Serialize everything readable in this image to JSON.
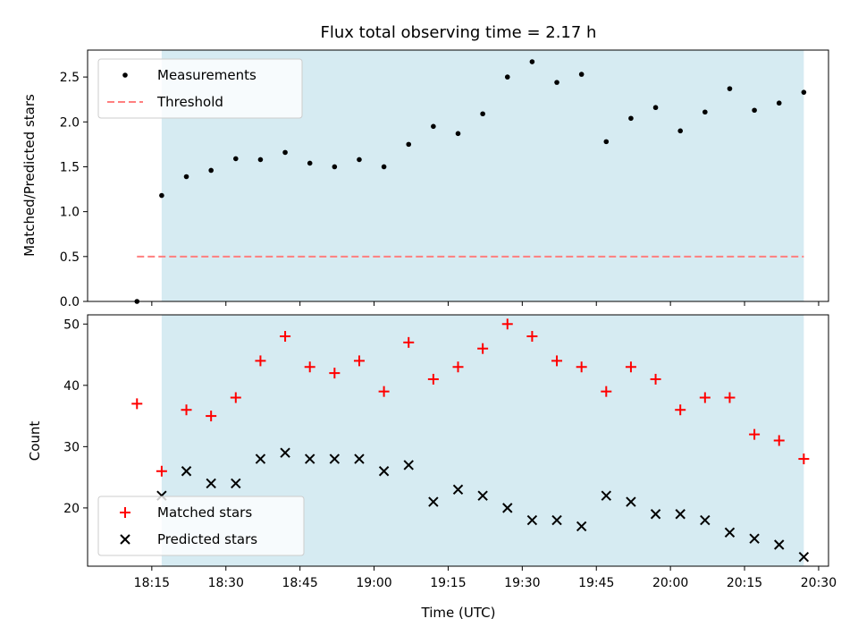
{
  "colors": {
    "shade": "#add8e6",
    "threshold": "#ff7f7f",
    "matched": "#ff0000",
    "predicted": "#000000",
    "measurement": "#000000"
  },
  "chart_data": [
    {
      "type": "scatter",
      "title": "Flux total observing time = 2.17 h",
      "ylabel": "Matched/Predicted stars",
      "xlabel": "",
      "ylim": [
        0,
        2.8
      ],
      "xlim": [
        "18:02",
        "20:32"
      ],
      "yticks": [
        "0.0",
        "0.5",
        "1.0",
        "1.5",
        "2.0",
        "2.5"
      ],
      "shaded_region": [
        "18:17",
        "20:27"
      ],
      "legend_position": "upper left",
      "series": [
        {
          "name": "Measurements",
          "marker": "dot",
          "x": [
            "18:12",
            "18:17",
            "18:22",
            "18:27",
            "18:32",
            "18:37",
            "18:42",
            "18:47",
            "18:52",
            "18:57",
            "19:02",
            "19:07",
            "19:12",
            "19:17",
            "19:22",
            "19:27",
            "19:32",
            "19:37",
            "19:42",
            "19:47",
            "19:52",
            "19:57",
            "20:02",
            "20:07",
            "20:12",
            "20:17",
            "20:22",
            "20:27"
          ],
          "values": [
            0.0,
            1.18,
            1.39,
            1.46,
            1.59,
            1.58,
            1.66,
            1.54,
            1.5,
            1.58,
            1.5,
            1.75,
            1.95,
            1.87,
            2.09,
            2.5,
            2.67,
            2.44,
            2.53,
            1.78,
            2.04,
            2.16,
            1.9,
            2.11,
            2.37,
            2.13,
            2.21,
            2.33
          ]
        },
        {
          "name": "Threshold",
          "marker": "dashed-line",
          "x": [
            "18:12",
            "20:27"
          ],
          "values": [
            0.5,
            0.5
          ]
        }
      ]
    },
    {
      "type": "scatter",
      "title": "",
      "ylabel": "Count",
      "xlabel": "Time (UTC)",
      "ylim": [
        10.5,
        51.5
      ],
      "xlim": [
        "18:02",
        "20:32"
      ],
      "yticks": [
        "20",
        "30",
        "40",
        "50"
      ],
      "xticks": [
        "18:15",
        "18:30",
        "18:45",
        "19:00",
        "19:15",
        "19:30",
        "19:45",
        "20:00",
        "20:15",
        "20:30"
      ],
      "shaded_region": [
        "18:17",
        "20:27"
      ],
      "legend_position": "lower left",
      "series": [
        {
          "name": "Matched stars",
          "marker": "plus",
          "x": [
            "18:12",
            "18:17",
            "18:22",
            "18:27",
            "18:32",
            "18:37",
            "18:42",
            "18:47",
            "18:52",
            "18:57",
            "19:02",
            "19:07",
            "19:12",
            "19:17",
            "19:22",
            "19:27",
            "19:32",
            "19:37",
            "19:42",
            "19:47",
            "19:52",
            "19:57",
            "20:02",
            "20:07",
            "20:12",
            "20:17",
            "20:22",
            "20:27"
          ],
          "values": [
            37,
            26,
            36,
            35,
            38,
            44,
            48,
            43,
            42,
            44,
            39,
            47,
            41,
            43,
            46,
            50,
            48,
            44,
            43,
            39,
            43,
            41,
            36,
            38,
            38,
            32,
            31,
            28
          ]
        },
        {
          "name": "Predicted stars",
          "marker": "cross",
          "x": [
            "18:17",
            "18:22",
            "18:27",
            "18:32",
            "18:37",
            "18:42",
            "18:47",
            "18:52",
            "18:57",
            "19:02",
            "19:07",
            "19:12",
            "19:17",
            "19:22",
            "19:27",
            "19:32",
            "19:37",
            "19:42",
            "19:47",
            "19:52",
            "19:57",
            "20:02",
            "20:07",
            "20:12",
            "20:17",
            "20:22",
            "20:27"
          ],
          "values": [
            22,
            26,
            24,
            24,
            28,
            29,
            28,
            28,
            28,
            26,
            27,
            21,
            23,
            22,
            20,
            18,
            18,
            17,
            22,
            21,
            19,
            19,
            18,
            16,
            15,
            14,
            12
          ]
        }
      ]
    }
  ]
}
